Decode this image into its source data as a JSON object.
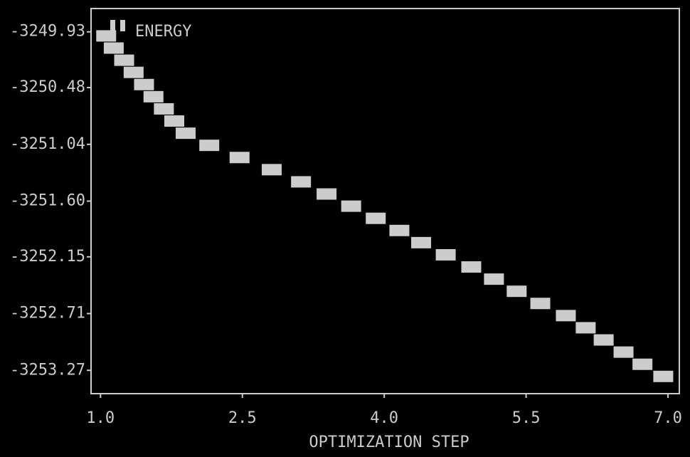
{
  "chart_data": {
    "type": "line",
    "xlabel": "OPTIMIZATION STEP",
    "series": [
      {
        "name": "ENERGY",
        "color": "#cccccc",
        "x": [
          1.06,
          1.14,
          1.25,
          1.35,
          1.46,
          1.56,
          1.67,
          1.78,
          1.9,
          2.15,
          2.47,
          2.81,
          3.12,
          3.39,
          3.65,
          3.91,
          4.16,
          4.39,
          4.65,
          4.92,
          5.16,
          5.4,
          5.65,
          5.92,
          6.13,
          6.32,
          6.53,
          6.73,
          6.95
        ],
        "values": [
          -3249.97,
          -3250.09,
          -3250.21,
          -3250.33,
          -3250.45,
          -3250.57,
          -3250.69,
          -3250.81,
          -3250.93,
          -3251.05,
          -3251.17,
          -3251.29,
          -3251.41,
          -3251.53,
          -3251.65,
          -3251.77,
          -3251.89,
          -3252.01,
          -3252.13,
          -3252.25,
          -3252.37,
          -3252.49,
          -3252.61,
          -3252.73,
          -3252.85,
          -3252.97,
          -3253.09,
          -3253.21,
          -3253.33
        ]
      }
    ],
    "xlim": [
      0.9,
      7.12
    ],
    "ylim": [
      -3253.5,
      -3249.7
    ],
    "xticks": [
      {
        "value": 1,
        "label": "1.0"
      },
      2.5,
      {
        "value": 4,
        "label": "4.0"
      },
      5.5,
      {
        "value": 7,
        "label": "7.0"
      }
    ],
    "yticks": [
      -3249.93,
      -3250.48,
      -3251.04,
      {
        "value": -3251.6,
        "label": "-3251.60"
      },
      -3252.15,
      -3252.71,
      -3253.27
    ],
    "legend": "upper left"
  }
}
